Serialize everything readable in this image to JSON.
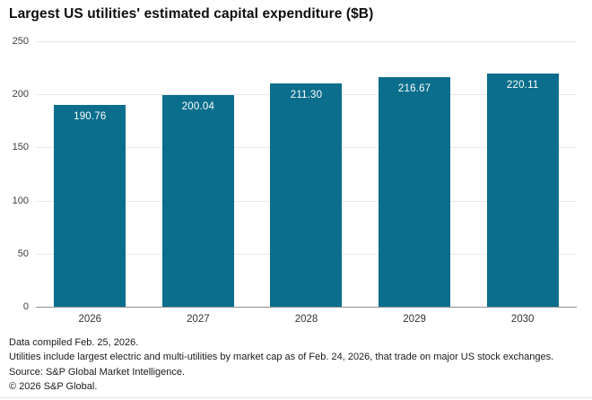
{
  "title": "Largest US utilities' estimated capital expenditure ($B)",
  "chart_data": {
    "type": "bar",
    "title": "Largest US utilities' estimated capital expenditure ($B)",
    "categories": [
      "2026",
      "2027",
      "2028",
      "2029",
      "2030"
    ],
    "values": [
      190.76,
      200.04,
      211.3,
      216.67,
      220.11
    ],
    "value_labels": [
      "190.76",
      "200.04",
      "211.30",
      "216.67",
      "220.11"
    ],
    "xlabel": "",
    "ylabel": "",
    "ylim": [
      0,
      250
    ],
    "yticks": [
      0,
      50,
      100,
      150,
      200,
      250
    ],
    "grid": "horizontal",
    "legend_position": "none",
    "bar_color": "#0a6e8c",
    "value_label_color": "#ffffff",
    "gridline_color": "#e8e8e8",
    "baseline_color": "#8f8f8f",
    "tick_label_color": "#3d3d3d"
  },
  "footnotes": {
    "line1": "Data compiled Feb. 25, 2026.",
    "line2": "Utilities include largest electric and multi-utilities by market cap as of Feb. 24, 2026, that trade on major US stock exchanges.",
    "line3": "Source: S&P Global Market Intelligence.",
    "line4": "© 2026 S&P Global."
  },
  "colors": {
    "background": "#ffffff",
    "accent_teal": "#0a6e8c",
    "bottom_rule": "#e4e4e4"
  }
}
